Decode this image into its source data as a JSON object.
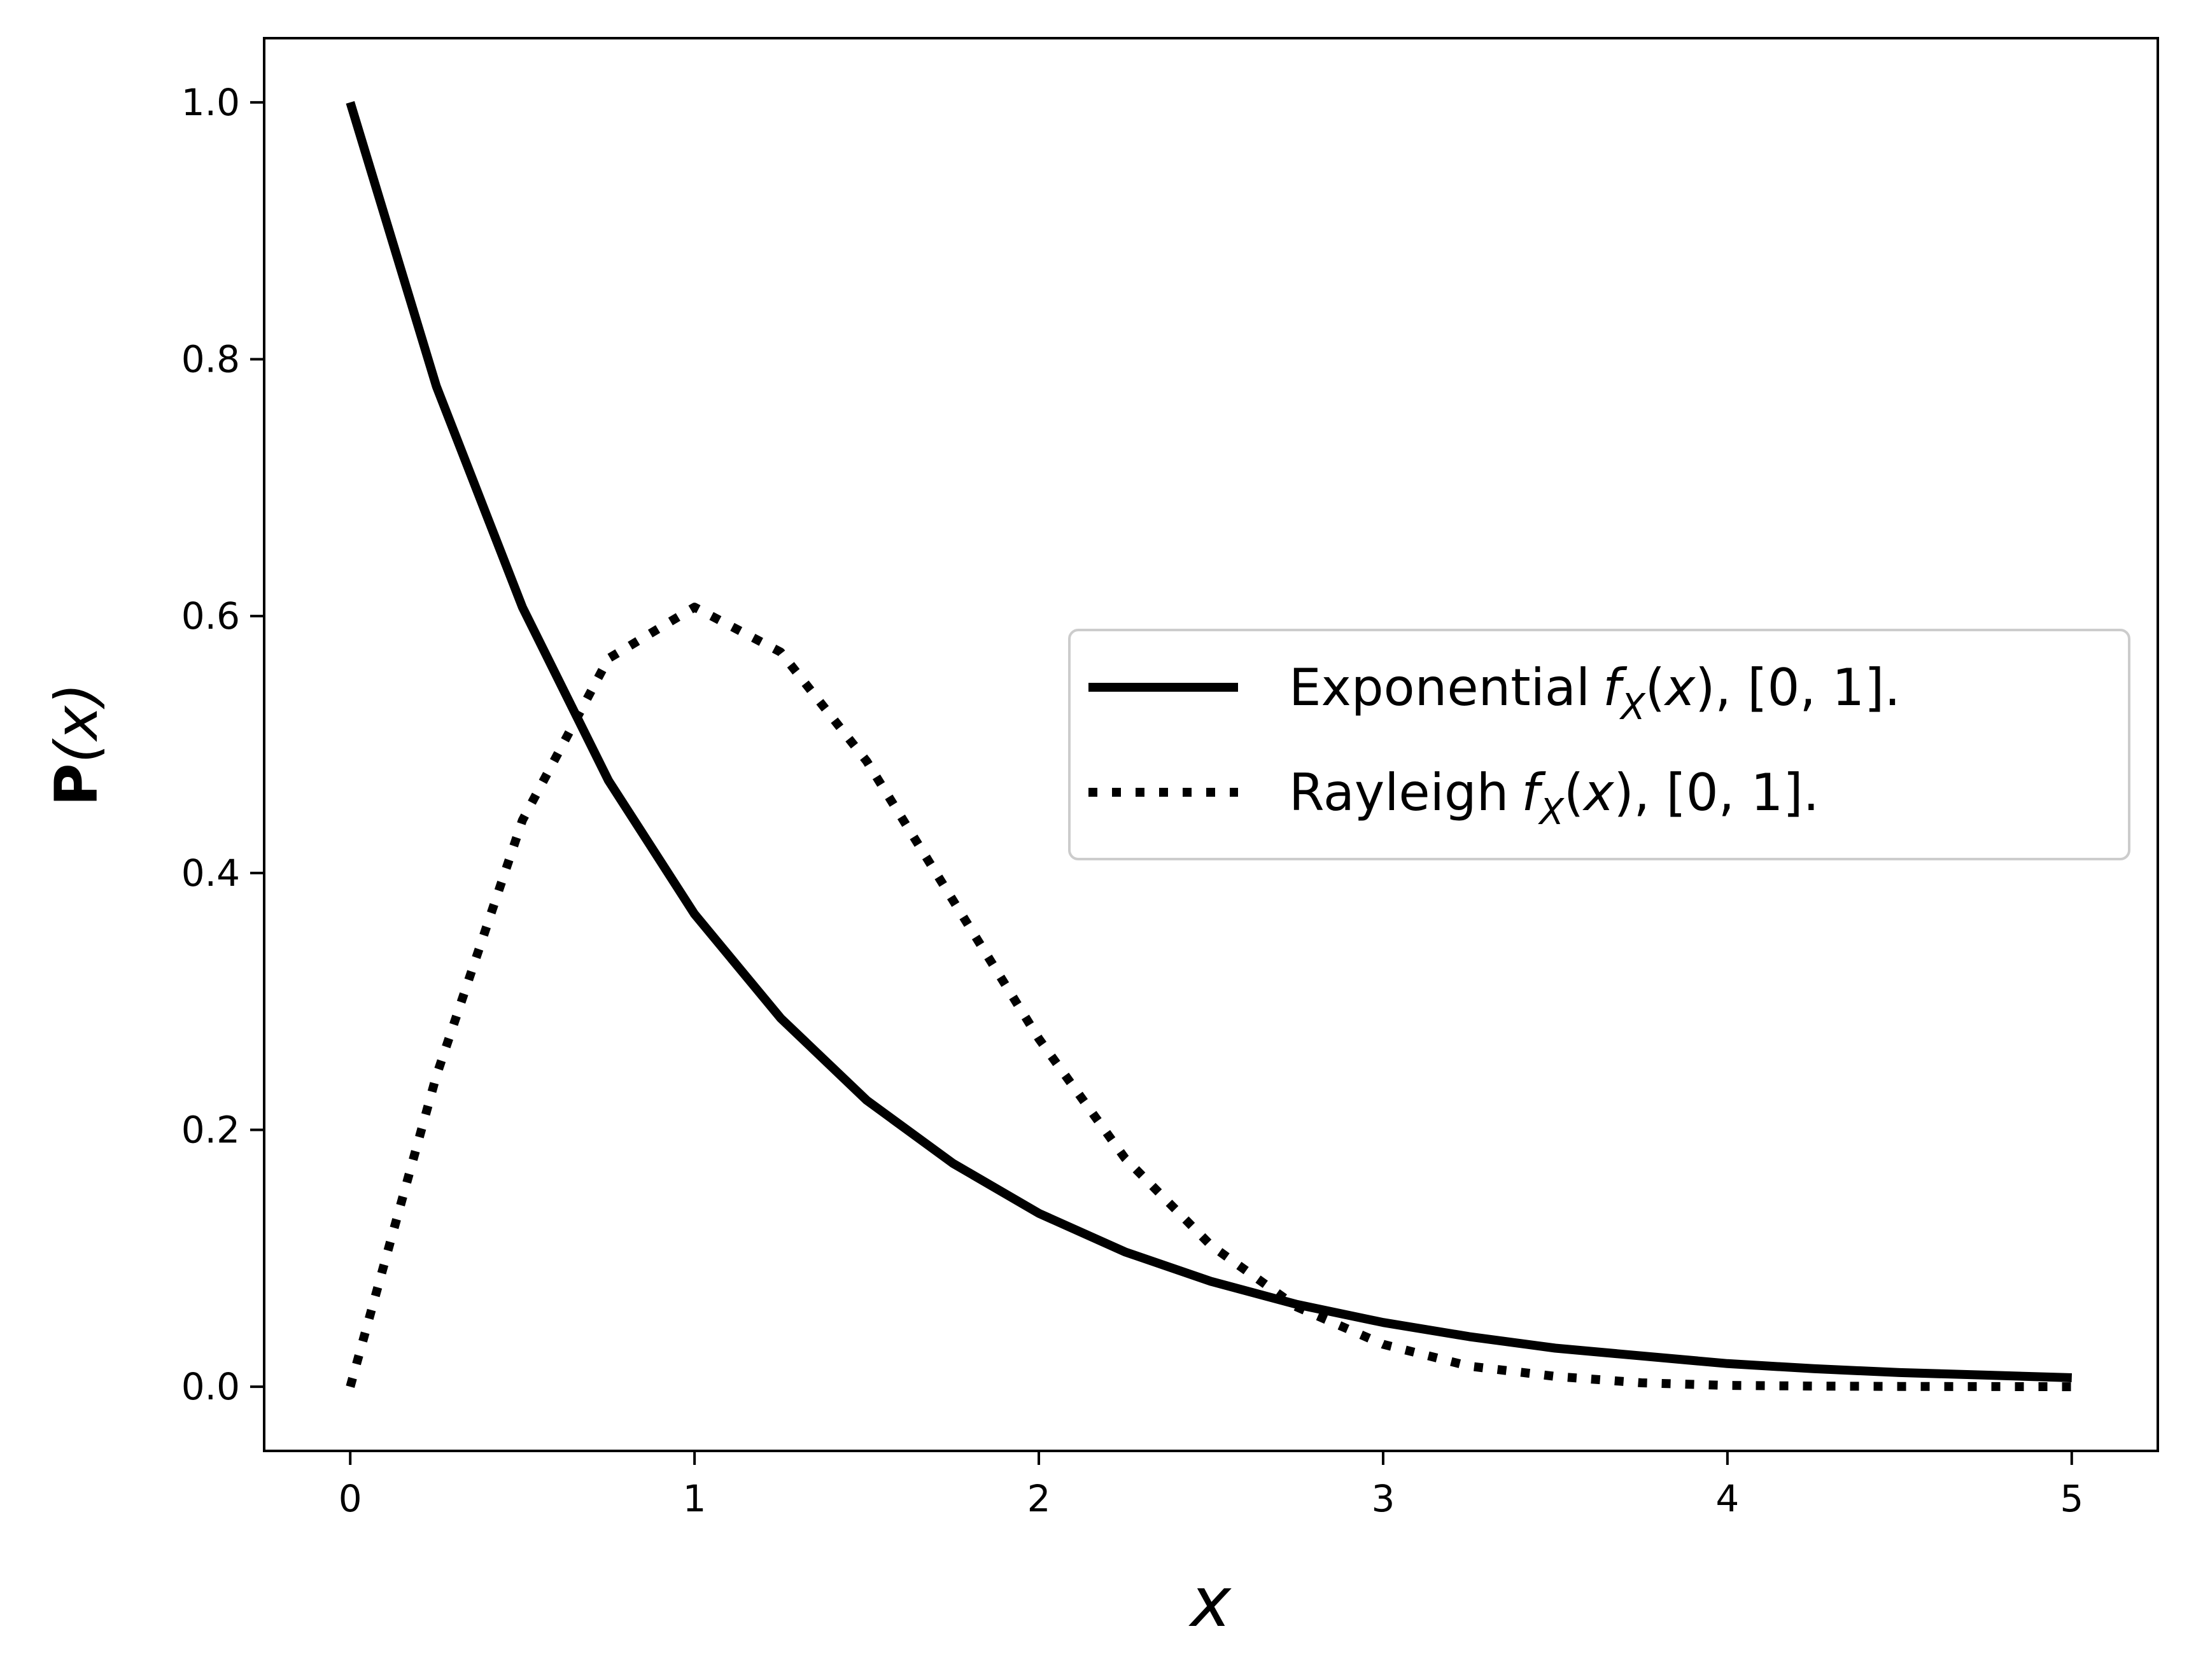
{
  "chart_data": {
    "type": "line",
    "title": "",
    "xlabel": "x",
    "ylabel_bold": "P",
    "ylabel_rest": "(x)",
    "xlim": [
      -0.25,
      5.25
    ],
    "ylim": [
      -0.05,
      1.05
    ],
    "xticks": [
      0,
      1,
      2,
      3,
      4,
      5
    ],
    "yticks": [
      0.0,
      0.2,
      0.4,
      0.6,
      0.8,
      1.0
    ],
    "xtick_labels": [
      "0",
      "1",
      "2",
      "3",
      "4",
      "5"
    ],
    "ytick_labels": [
      "0.0",
      "0.2",
      "0.4",
      "0.6",
      "0.8",
      "1.0"
    ],
    "grid": false,
    "legend_position": "center-right",
    "series": [
      {
        "name": "Exponential",
        "legend_suffix": "[0, 1].",
        "style": "solid",
        "color": "#000000",
        "x": [
          0.0,
          0.25,
          0.5,
          0.75,
          1.0,
          1.25,
          1.5,
          1.75,
          2.0,
          2.25,
          2.5,
          2.75,
          3.0,
          3.25,
          3.5,
          3.75,
          4.0,
          4.25,
          4.5,
          4.75,
          5.0
        ],
        "values": [
          1.0,
          0.779,
          0.607,
          0.472,
          0.368,
          0.287,
          0.223,
          0.174,
          0.135,
          0.105,
          0.082,
          0.064,
          0.05,
          0.039,
          0.03,
          0.024,
          0.018,
          0.014,
          0.011,
          0.009,
          0.007
        ]
      },
      {
        "name": "Rayleigh",
        "legend_suffix": "[0, 1].",
        "style": "dotted",
        "color": "#000000",
        "x": [
          0.0,
          0.25,
          0.5,
          0.75,
          1.0,
          1.25,
          1.5,
          1.75,
          2.0,
          2.25,
          2.5,
          2.75,
          3.0,
          3.25,
          3.5,
          3.75,
          4.0,
          4.25,
          4.5,
          4.75,
          5.0
        ],
        "values": [
          0.0,
          0.242,
          0.441,
          0.567,
          0.607,
          0.572,
          0.487,
          0.379,
          0.271,
          0.178,
          0.11,
          0.062,
          0.033,
          0.016,
          0.008,
          0.003,
          0.001,
          0.0005,
          0.0002,
          0.0001,
          0.0
        ]
      }
    ]
  }
}
